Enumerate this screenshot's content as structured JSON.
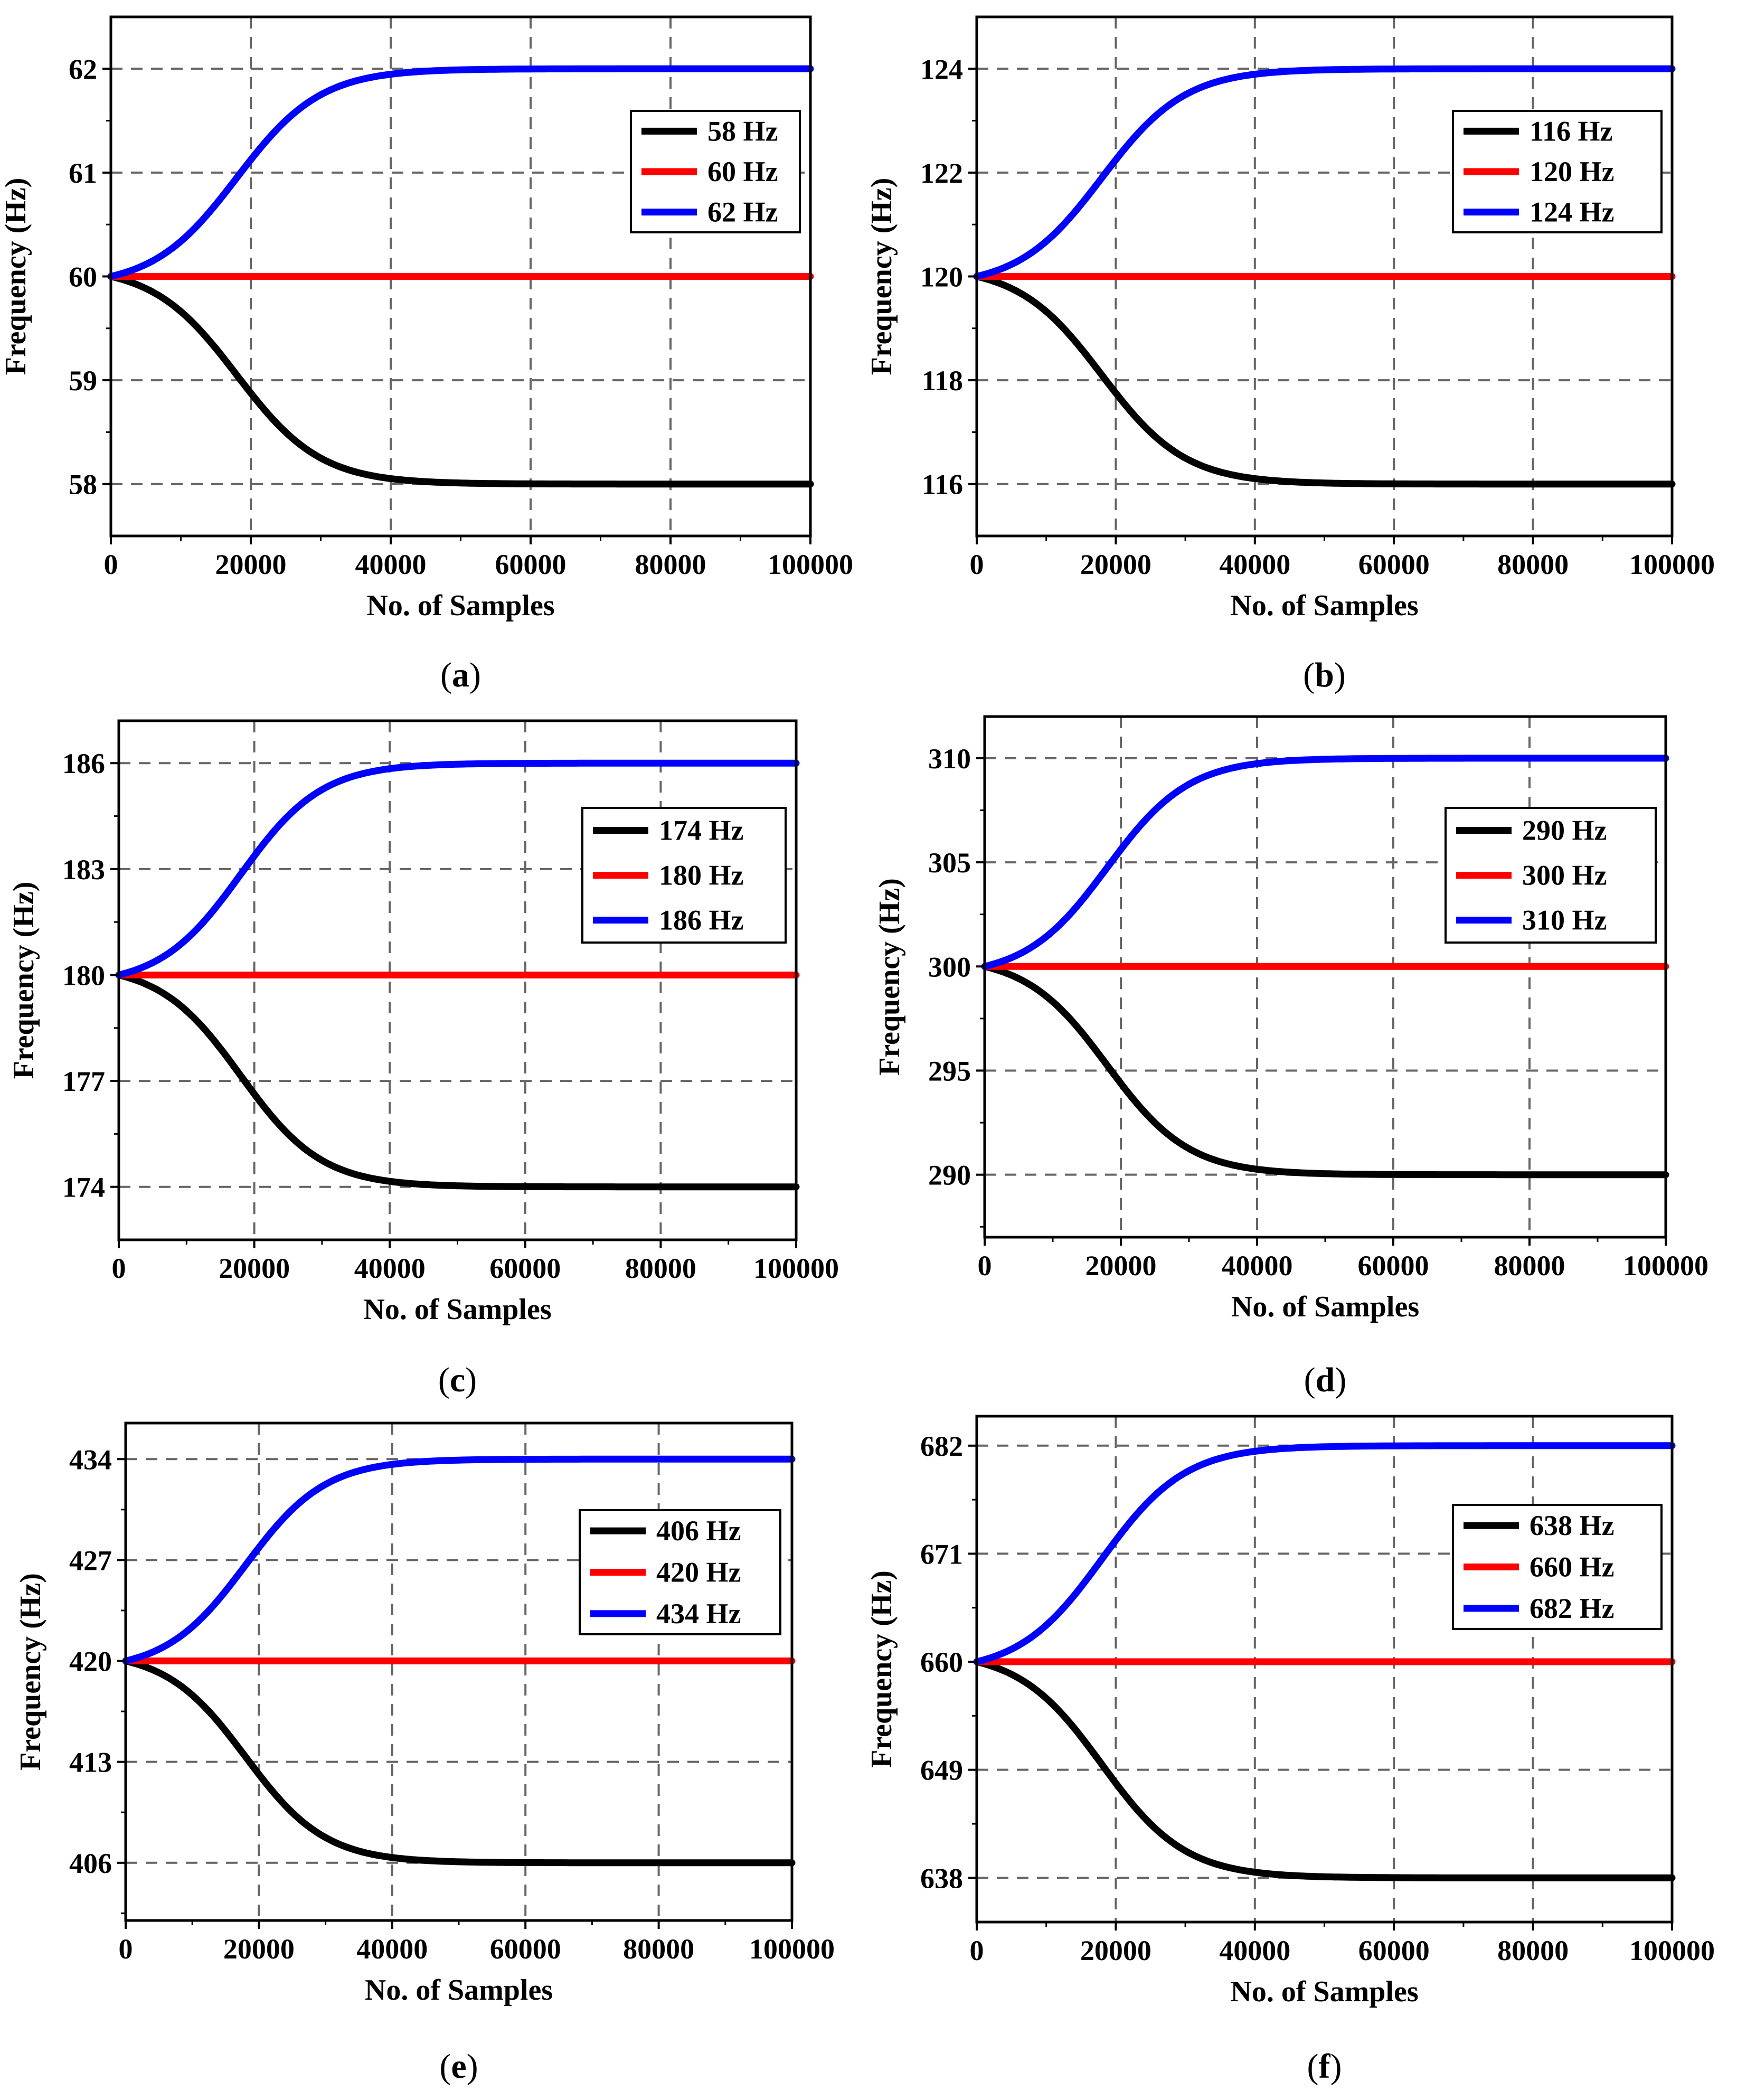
{
  "chart_data": [
    {
      "id": "a",
      "type": "line",
      "caption_letter": "a",
      "xlabel": "No. of Samples",
      "ylabel": "Frequency (Hz)",
      "xlim": [
        0,
        100000
      ],
      "ylim": [
        57.5,
        62.5
      ],
      "xticks": [
        "0",
        "20000",
        "40000",
        "60000",
        "80000",
        "100000"
      ],
      "yticks": [
        "58",
        "59",
        "60",
        "61",
        "62"
      ],
      "base": 60,
      "grid": true,
      "legend_position": "right",
      "series": [
        {
          "name": "58 Hz",
          "color": "#000000",
          "target": 58
        },
        {
          "name": "60 Hz",
          "color": "#ff0000",
          "target": 60
        },
        {
          "name": "62 Hz",
          "color": "#0000ff",
          "target": 62
        }
      ]
    },
    {
      "id": "b",
      "type": "line",
      "caption_letter": "b",
      "xlabel": "No. of Samples",
      "ylabel": "Frequency (Hz)",
      "xlim": [
        0,
        100000
      ],
      "ylim": [
        115,
        125
      ],
      "xticks": [
        "0",
        "20000",
        "40000",
        "60000",
        "80000",
        "100000"
      ],
      "yticks": [
        "116",
        "118",
        "120",
        "122",
        "124"
      ],
      "base": 120,
      "grid": true,
      "legend_position": "right",
      "series": [
        {
          "name": "116 Hz",
          "color": "#000000",
          "target": 116
        },
        {
          "name": "120 Hz",
          "color": "#ff0000",
          "target": 120
        },
        {
          "name": "124 Hz",
          "color": "#0000ff",
          "target": 124
        }
      ]
    },
    {
      "id": "c",
      "type": "line",
      "caption_letter": "c",
      "xlabel": "No. of Samples",
      "ylabel": "Frequency (Hz)",
      "xlim": [
        0,
        100000
      ],
      "ylim": [
        172.5,
        187.2
      ],
      "xticks": [
        "0",
        "20000",
        "40000",
        "60000",
        "80000",
        "100000"
      ],
      "yticks": [
        "174",
        "177",
        "180",
        "183",
        "186"
      ],
      "base": 180,
      "grid": true,
      "legend_position": "right",
      "series": [
        {
          "name": "174 Hz",
          "color": "#000000",
          "target": 174
        },
        {
          "name": "180 Hz",
          "color": "#ff0000",
          "target": 180
        },
        {
          "name": "186 Hz",
          "color": "#0000ff",
          "target": 186
        }
      ]
    },
    {
      "id": "d",
      "type": "line",
      "caption_letter": "d",
      "xlabel": "No. of Samples",
      "ylabel": "Frequency (Hz)",
      "xlim": [
        0,
        100000
      ],
      "ylim": [
        287,
        312
      ],
      "xticks": [
        "0",
        "20000",
        "40000",
        "60000",
        "80000",
        "100000"
      ],
      "yticks": [
        "290",
        "295",
        "300",
        "305",
        "310"
      ],
      "base": 300,
      "grid": true,
      "legend_position": "right",
      "series": [
        {
          "name": "290 Hz",
          "color": "#000000",
          "target": 290
        },
        {
          "name": "300 Hz",
          "color": "#ff0000",
          "target": 300
        },
        {
          "name": "310 Hz",
          "color": "#0000ff",
          "target": 310
        }
      ]
    },
    {
      "id": "e",
      "type": "line",
      "caption_letter": "e",
      "xlabel": "No. of Samples",
      "ylabel": "Frequency (Hz)",
      "xlim": [
        0,
        100000
      ],
      "ylim": [
        402,
        436.5
      ],
      "xticks": [
        "0",
        "20000",
        "40000",
        "60000",
        "80000",
        "100000"
      ],
      "yticks": [
        "406",
        "413",
        "420",
        "427",
        "434"
      ],
      "base": 420,
      "grid": true,
      "legend_position": "right",
      "series": [
        {
          "name": "406 Hz",
          "color": "#000000",
          "target": 406
        },
        {
          "name": "420 Hz",
          "color": "#ff0000",
          "target": 420
        },
        {
          "name": "434 Hz",
          "color": "#0000ff",
          "target": 434
        }
      ]
    },
    {
      "id": "f",
      "type": "line",
      "caption_letter": "f",
      "xlabel": "No. of Samples",
      "ylabel": "Frequency (Hz)",
      "xlim": [
        0,
        100000
      ],
      "ylim": [
        633.5,
        685
      ],
      "xticks": [
        "0",
        "20000",
        "40000",
        "60000",
        "80000",
        "100000"
      ],
      "yticks": [
        "638",
        "649",
        "660",
        "671",
        "682"
      ],
      "base": 660,
      "grid": true,
      "legend_position": "right",
      "series": [
        {
          "name": "638 Hz",
          "color": "#000000",
          "target": 638
        },
        {
          "name": "660 Hz",
          "color": "#ff0000",
          "target": 660
        },
        {
          "name": "682 Hz",
          "color": "#0000ff",
          "target": 682
        }
      ]
    }
  ]
}
